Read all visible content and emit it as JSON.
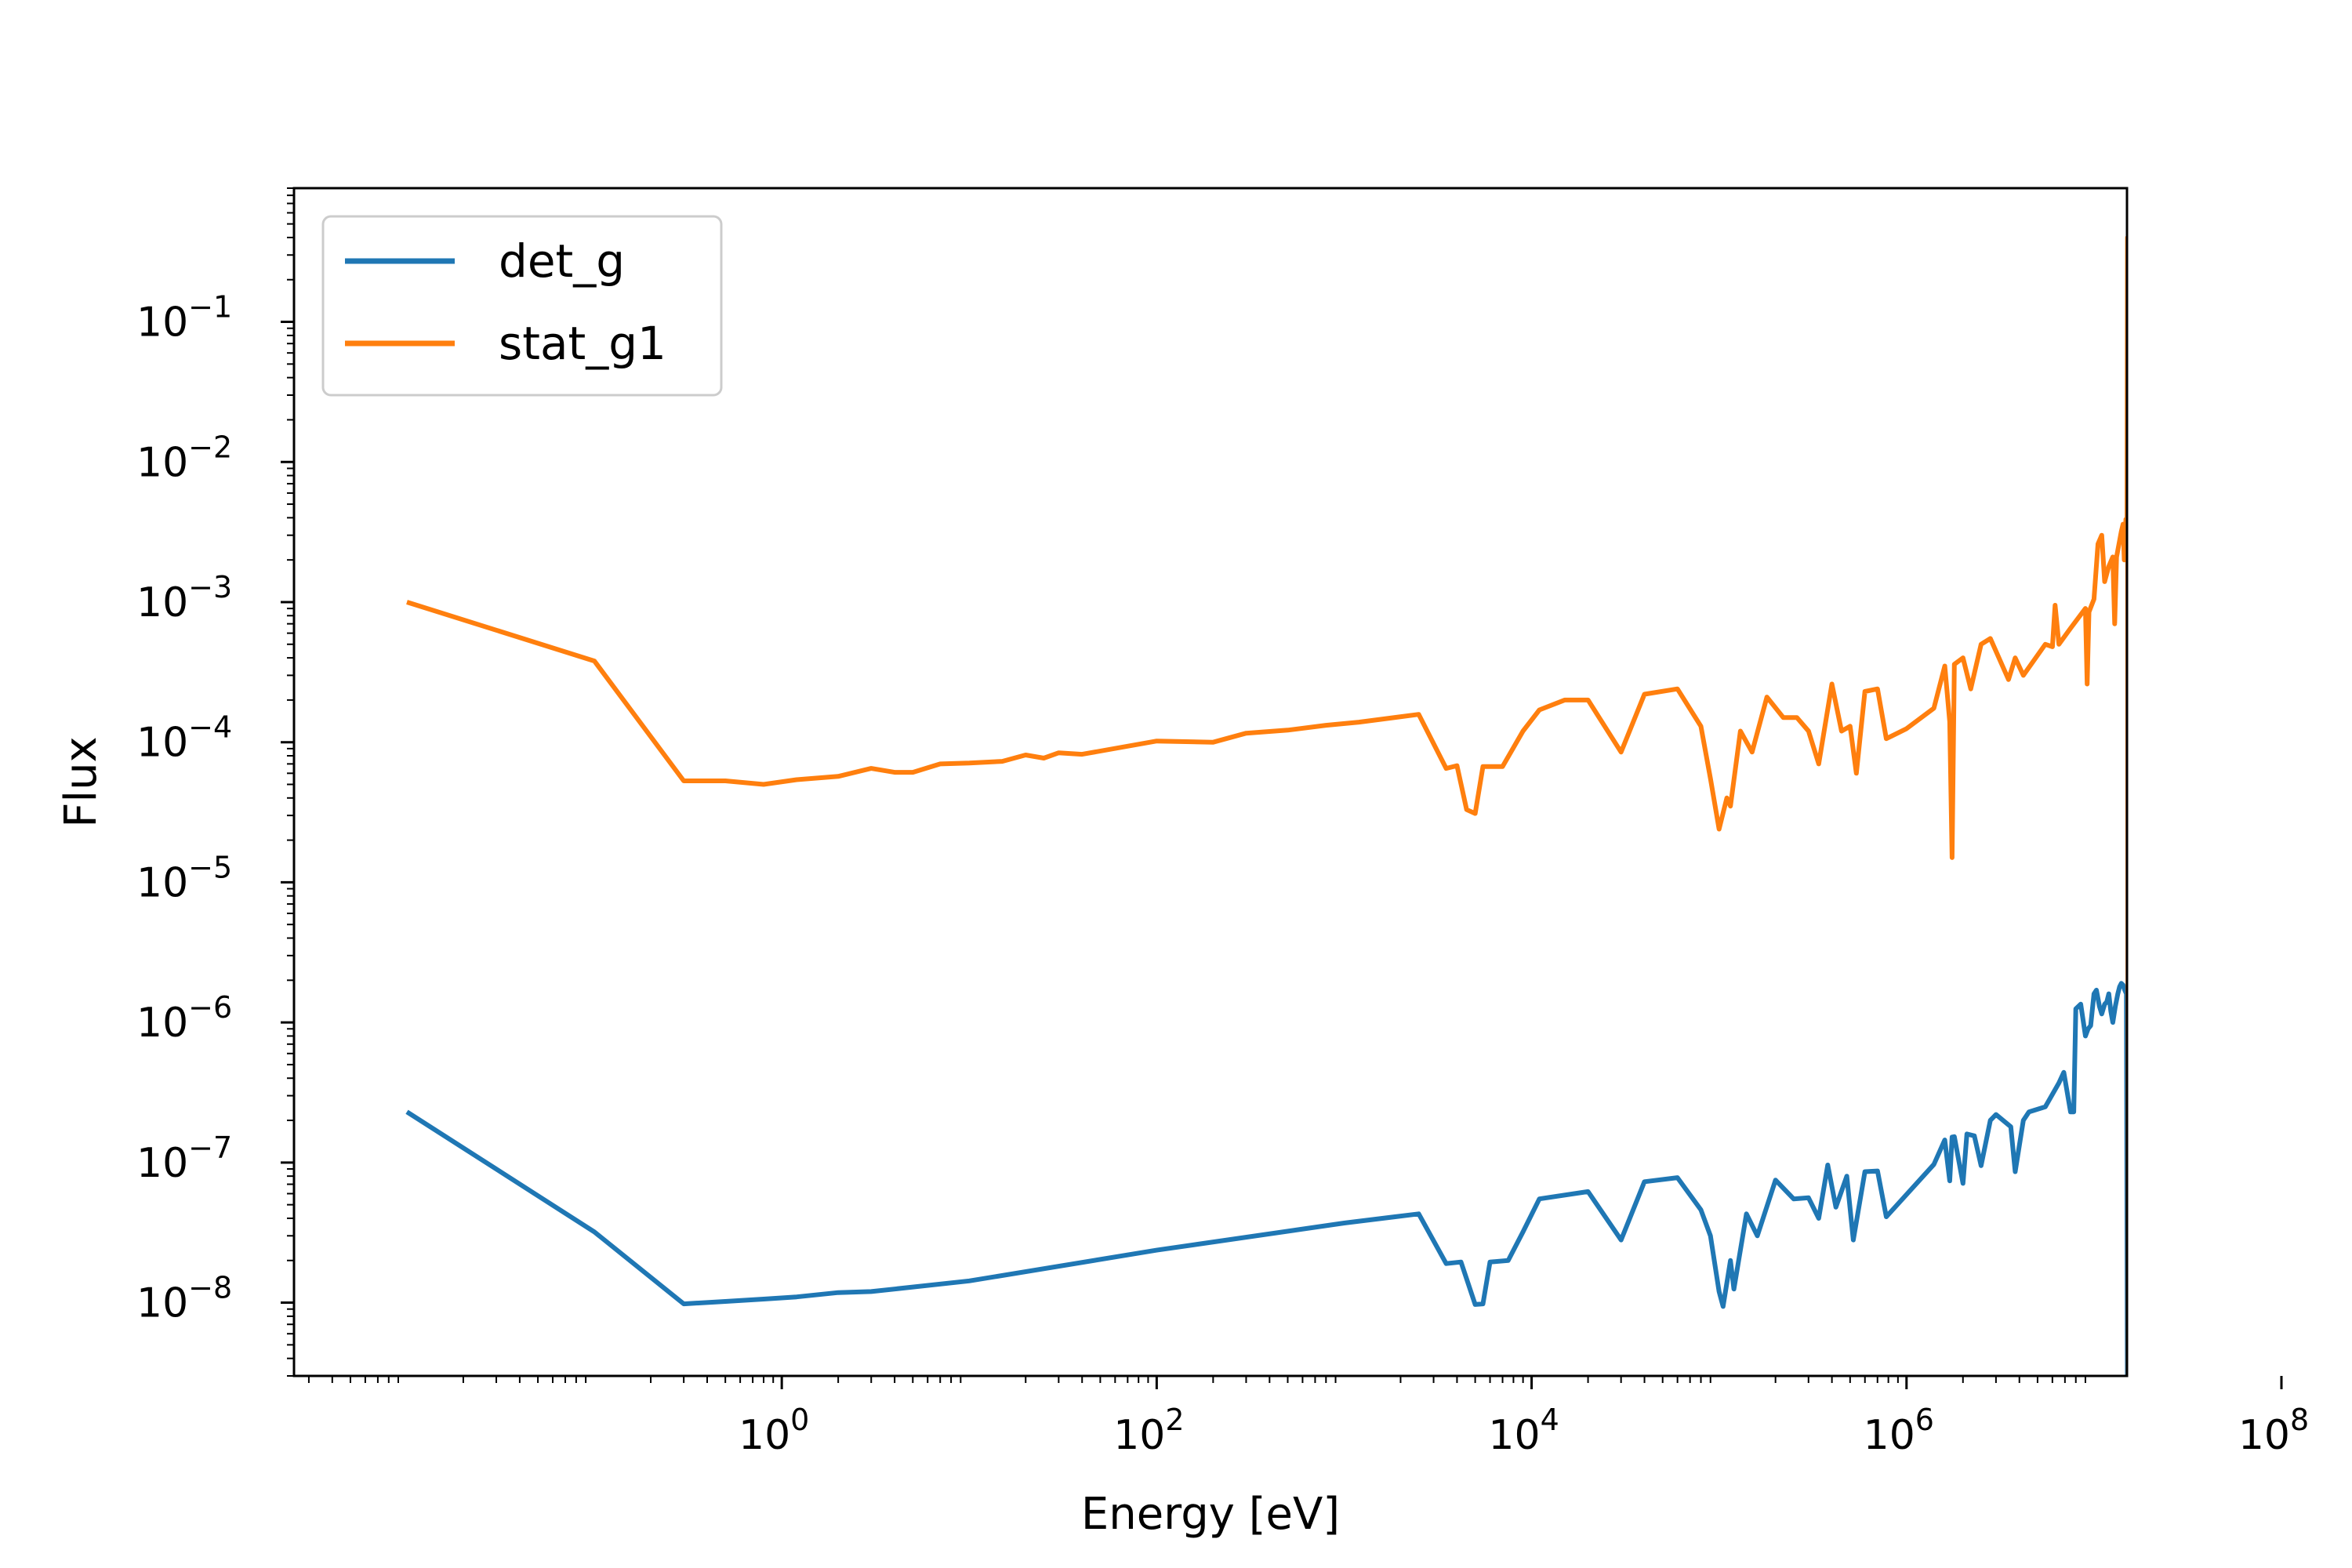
{
  "chart_data": {
    "type": "line",
    "title": "",
    "xlabel": "Energy [eV]",
    "ylabel": "Flux",
    "xscale": "log",
    "yscale": "log",
    "xlim": [
      0.0025,
      15000000
    ],
    "ylim": [
      3e-09,
      0.9
    ],
    "x_ticks": [
      {
        "value": 1,
        "base": "10",
        "exp": "0"
      },
      {
        "value": 100,
        "base": "10",
        "exp": "2"
      },
      {
        "value": 10000,
        "base": "10",
        "exp": "4"
      },
      {
        "value": 1000000,
        "base": "10",
        "exp": "6"
      },
      {
        "value": 100000000,
        "base": "10",
        "exp": "8"
      }
    ],
    "y_ticks": [
      {
        "value": 1e-08,
        "base": "10",
        "exp": "−8"
      },
      {
        "value": 1e-07,
        "base": "10",
        "exp": "−7"
      },
      {
        "value": 1e-06,
        "base": "10",
        "exp": "−6"
      },
      {
        "value": 1e-05,
        "base": "10",
        "exp": "−5"
      },
      {
        "value": 0.0001,
        "base": "10",
        "exp": "−4"
      },
      {
        "value": 0.001,
        "base": "10",
        "exp": "−3"
      },
      {
        "value": 0.01,
        "base": "10",
        "exp": "−2"
      },
      {
        "value": 0.1,
        "base": "10",
        "exp": "−1"
      }
    ],
    "grid": false,
    "legend": "upper-left",
    "series": [
      {
        "name": "det_g",
        "color": "#1f77b4",
        "points": [
          [
            0.01,
            2.3e-07
          ],
          [
            0.1,
            3.2e-08
          ],
          [
            0.3,
            9.8e-09
          ],
          [
            0.5,
            1.02e-08
          ],
          [
            0.8,
            1.06e-08
          ],
          [
            1.2,
            1.1e-08
          ],
          [
            2,
            1.18e-08
          ],
          [
            3,
            1.2e-08
          ],
          [
            10,
            1.43e-08
          ],
          [
            100,
            2.37e-08
          ],
          [
            1000,
            3.7e-08
          ],
          [
            2500,
            4.3e-08
          ],
          [
            3500,
            1.9e-08
          ],
          [
            4200,
            1.95e-08
          ],
          [
            5000,
            9.7e-09
          ],
          [
            5500,
            9.8e-09
          ],
          [
            6000,
            1.95e-08
          ],
          [
            7500,
            2e-08
          ],
          [
            9000,
            3.2e-08
          ],
          [
            11000,
            5.5e-08
          ],
          [
            20000,
            6.2e-08
          ],
          [
            30000,
            2.8e-08
          ],
          [
            40000,
            7.3e-08
          ],
          [
            60000,
            7.8e-08
          ],
          [
            80000,
            4.6e-08
          ],
          [
            90000,
            3e-08
          ],
          [
            100000,
            1.2e-08
          ],
          [
            105000,
            9.4e-09
          ],
          [
            115000,
            2e-08
          ],
          [
            120000,
            1.25e-08
          ],
          [
            140000,
            4.3e-08
          ],
          [
            160000,
            3e-08
          ],
          [
            200000,
            7.5e-08
          ],
          [
            250000,
            5.5e-08
          ],
          [
            300000,
            5.6e-08
          ],
          [
            340000,
            4e-08
          ],
          [
            380000,
            9.6e-08
          ],
          [
            420000,
            4.8e-08
          ],
          [
            480000,
            8e-08
          ],
          [
            520000,
            2.8e-08
          ],
          [
            600000,
            8.6e-08
          ],
          [
            700000,
            8.7e-08
          ],
          [
            780000,
            4.1e-08
          ],
          [
            1400000,
            9.7e-08
          ],
          [
            1600000,
            1.45e-07
          ],
          [
            1700000,
            7.4e-08
          ],
          [
            1750000,
            1.52e-07
          ],
          [
            1800000,
            1.53e-07
          ],
          [
            2000000,
            7.1e-08
          ],
          [
            2100000,
            1.6e-07
          ],
          [
            2300000,
            1.55e-07
          ],
          [
            2500000,
            9.5e-08
          ],
          [
            2800000,
            2e-07
          ],
          [
            3000000,
            2.2e-07
          ],
          [
            3600000,
            1.8e-07
          ],
          [
            3800000,
            8.6e-08
          ],
          [
            4200000,
            2e-07
          ],
          [
            4500000,
            2.3e-07
          ],
          [
            5500000,
            2.5e-07
          ],
          [
            6500000,
            3.7e-07
          ],
          [
            6900000,
            4.4e-07
          ],
          [
            7500000,
            2.3e-07
          ],
          [
            7800000,
            2.3e-07
          ],
          [
            8000000,
            1.25e-06
          ],
          [
            8500000,
            1.35e-06
          ],
          [
            9000000,
            8e-07
          ],
          [
            9300000,
            9e-07
          ],
          [
            9600000,
            9.5e-07
          ],
          [
            10000000,
            1.6e-06
          ],
          [
            10300000,
            1.7e-06
          ],
          [
            10700000,
            1.3e-06
          ],
          [
            11000000,
            1.15e-06
          ],
          [
            11400000,
            1.35e-06
          ],
          [
            11700000,
            1.4e-06
          ],
          [
            12000000,
            1.6e-06
          ],
          [
            12300000,
            1.2e-06
          ],
          [
            12600000,
            1e-06
          ],
          [
            13000000,
            1.3e-06
          ],
          [
            13400000,
            1.6e-06
          ],
          [
            13700000,
            1.8e-06
          ],
          [
            14000000,
            1.9e-06
          ],
          [
            14300000,
            1.85e-06
          ],
          [
            14600000,
            1.7e-06
          ],
          [
            14900000,
            1.6e-06
          ],
          [
            15100000,
            1e-09
          ]
        ]
      },
      {
        "name": "stat_g1",
        "color": "#ff7f0e",
        "points": [
          [
            0.01,
            0.001
          ],
          [
            0.1,
            0.00038
          ],
          [
            0.3,
            5.3e-05
          ],
          [
            0.5,
            5.3e-05
          ],
          [
            0.8,
            5e-05
          ],
          [
            1.2,
            5.4e-05
          ],
          [
            2,
            5.7e-05
          ],
          [
            3,
            6.5e-05
          ],
          [
            4,
            6.1e-05
          ],
          [
            5,
            6.1e-05
          ],
          [
            7,
            7e-05
          ],
          [
            10,
            7.1e-05
          ],
          [
            15,
            7.3e-05
          ],
          [
            20,
            8.1e-05
          ],
          [
            25,
            7.7e-05
          ],
          [
            30,
            8.4e-05
          ],
          [
            40,
            8.2e-05
          ],
          [
            100,
            0.000102
          ],
          [
            200,
            0.0001
          ],
          [
            300,
            0.000116
          ],
          [
            500,
            0.000122
          ],
          [
            800,
            0.000132
          ],
          [
            1200,
            0.000139
          ],
          [
            2500,
            0.000158
          ],
          [
            3500,
            6.5e-05
          ],
          [
            4000,
            6.8e-05
          ],
          [
            4500,
            3.3e-05
          ],
          [
            5000,
            3.1e-05
          ],
          [
            5500,
            6.7e-05
          ],
          [
            7000,
            6.7e-05
          ],
          [
            9000,
            0.00012
          ],
          [
            11000,
            0.00017
          ],
          [
            15000,
            0.0002
          ],
          [
            20000,
            0.0002
          ],
          [
            30000,
            8.5e-05
          ],
          [
            40000,
            0.00022
          ],
          [
            60000,
            0.00024
          ],
          [
            80000,
            0.00013
          ],
          [
            90000,
            5.5e-05
          ],
          [
            100000,
            2.4e-05
          ],
          [
            110000,
            4e-05
          ],
          [
            115000,
            3.5e-05
          ],
          [
            130000,
            0.00012
          ],
          [
            150000,
            8.5e-05
          ],
          [
            180000,
            0.00021
          ],
          [
            220000,
            0.00015
          ],
          [
            260000,
            0.00015
          ],
          [
            300000,
            0.00012
          ],
          [
            340000,
            7e-05
          ],
          [
            400000,
            0.00026
          ],
          [
            450000,
            0.00012
          ],
          [
            500000,
            0.00013
          ],
          [
            540000,
            6e-05
          ],
          [
            600000,
            0.00023
          ],
          [
            700000,
            0.00024
          ],
          [
            780000,
            0.000106
          ],
          [
            1000000,
            0.000125
          ],
          [
            1400000,
            0.000175
          ],
          [
            1600000,
            0.00035
          ],
          [
            1700000,
            0.00014
          ],
          [
            1750000,
            1.5e-05
          ],
          [
            1800000,
            0.00036
          ],
          [
            2000000,
            0.0004
          ],
          [
            2200000,
            0.00024
          ],
          [
            2500000,
            0.0005
          ],
          [
            2800000,
            0.00055
          ],
          [
            3500000,
            0.00028
          ],
          [
            3800000,
            0.0004
          ],
          [
            4200000,
            0.0003
          ],
          [
            5500000,
            0.0005
          ],
          [
            6000000,
            0.00048
          ],
          [
            6200000,
            0.00095
          ],
          [
            6500000,
            0.0005
          ],
          [
            7500000,
            0.00065
          ],
          [
            9000000,
            0.0009
          ],
          [
            9200000,
            0.00026
          ],
          [
            9400000,
            0.00085
          ],
          [
            10000000,
            0.00105
          ],
          [
            10500000,
            0.0026
          ],
          [
            11000000,
            0.003
          ],
          [
            11400000,
            0.0014
          ],
          [
            12000000,
            0.0018
          ],
          [
            12600000,
            0.0021
          ],
          [
            12900000,
            0.0007
          ],
          [
            13200000,
            0.0021
          ],
          [
            13600000,
            0.0026
          ],
          [
            14000000,
            0.0032
          ],
          [
            14300000,
            0.0036
          ],
          [
            14500000,
            0.002
          ],
          [
            14800000,
            0.0039
          ],
          [
            15000000,
            0.002
          ],
          [
            15100000,
            0.4
          ],
          [
            15200000,
            1e-09
          ]
        ]
      }
    ]
  }
}
